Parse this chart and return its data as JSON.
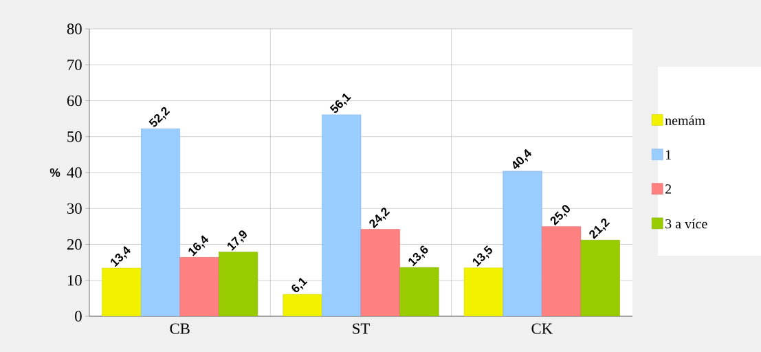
{
  "chart_data": {
    "type": "bar",
    "ylabel": "%",
    "categories": [
      "CB",
      "ST",
      "CK"
    ],
    "series": [
      {
        "name": "nemám",
        "color": "#f2f200",
        "values": [
          13.4,
          6.1,
          13.5
        ],
        "value_labels": [
          "13,4",
          "6,1",
          "13,5"
        ]
      },
      {
        "name": "1",
        "color": "#99ccff",
        "values": [
          52.2,
          56.1,
          40.4
        ],
        "value_labels": [
          "52,2",
          "56,1",
          "40,4"
        ]
      },
      {
        "name": "2",
        "color": "#ff8080",
        "values": [
          16.4,
          24.2,
          25.0
        ],
        "value_labels": [
          "16,4",
          "24,2",
          "25,0"
        ]
      },
      {
        "name": "3 a více",
        "color": "#99cc00",
        "values": [
          17.9,
          13.6,
          21.2
        ],
        "value_labels": [
          "17,9",
          "13,6",
          "21,2"
        ]
      }
    ],
    "ylim": [
      0,
      80
    ],
    "yticks": [
      0,
      10,
      20,
      30,
      40,
      50,
      60,
      70,
      80
    ],
    "grid": true,
    "legend": "right"
  }
}
